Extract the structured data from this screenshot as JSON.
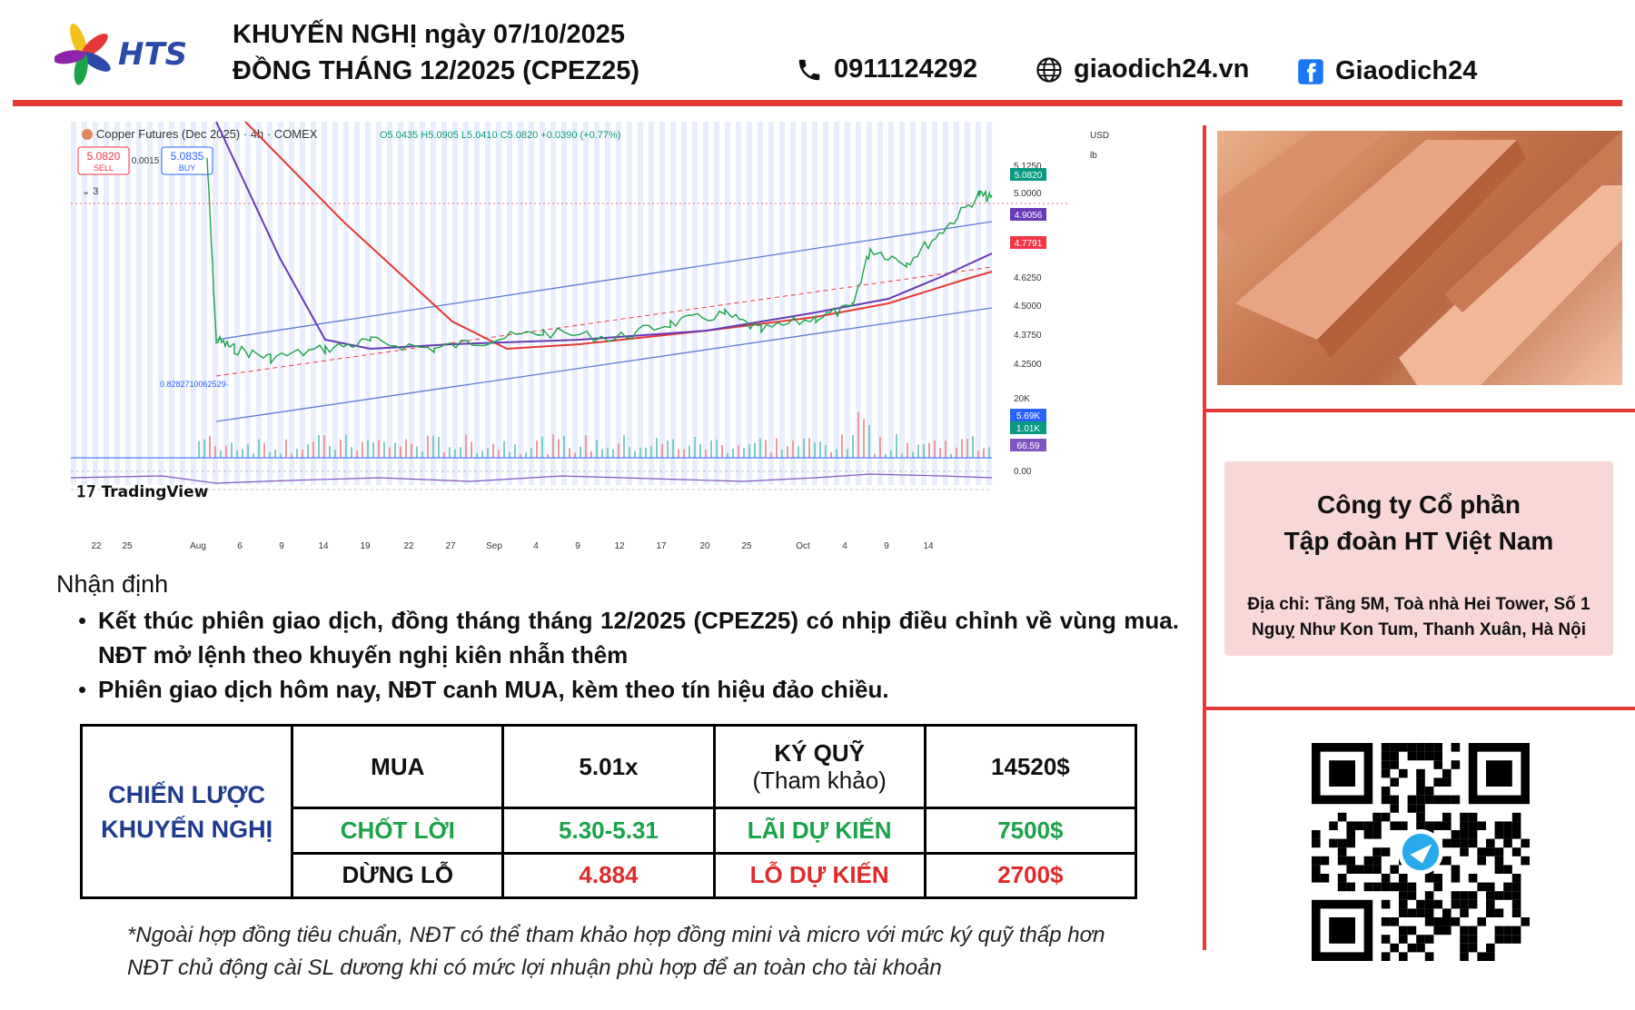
{
  "header": {
    "logo_text": "HTS",
    "title_line1": "KHUYẾN NGHỊ ngày 07/10/2025",
    "title_line2": "ĐỒNG THÁNG 12/2025 (CPEZ25)",
    "phone": "0911124292",
    "website": "giaodich24.vn",
    "facebook": "Giaodich24",
    "colors": {
      "accent_red": "#e53935",
      "logo_blue": "#2b4aa8"
    }
  },
  "chart_screenshot": {
    "symbol_line": "Copper Futures (Dec 2025) · 4h · COMEX",
    "ohlc": "O5.0435 H5.0905 L5.0410 C5.0820 +0.0390 (+0.77%)",
    "sell_price": "5.0820",
    "sell_label": "SELL",
    "spread": "0.0015",
    "buy_price": "5.0835",
    "buy_label": "BUY",
    "indicators_count": "3",
    "currency": "USD",
    "unit": "lb",
    "watermark": "TradingView",
    "fib_label": "0.8282710062529·",
    "price_badges": [
      {
        "label": "5.0820",
        "color": "#089981"
      },
      {
        "label": "4.9056",
        "color": "#673ab7"
      },
      {
        "label": "4.7791",
        "color": "#f23645"
      },
      {
        "label": "5.69K",
        "color": "#2962ff"
      },
      {
        "label": "1.01K",
        "color": "#089981"
      },
      {
        "label": "66.59",
        "color": "#7e57c2"
      }
    ],
    "right_ticks": [
      "5.1250",
      "5.0000",
      "4.6250",
      "4.5000",
      "4.3750",
      "4.2500",
      "20K",
      "0.00"
    ],
    "x_ticks": [
      "22",
      "25",
      "Aug",
      "6",
      "9",
      "14",
      "19",
      "22",
      "27",
      "Sep",
      "4",
      "9",
      "12",
      "17",
      "20",
      "25",
      "Oct",
      "4",
      "9",
      "14"
    ]
  },
  "analysis": {
    "heading": "Nhận định",
    "bullets": [
      "Kết thúc phiên giao dịch, đồng tháng tháng 12/2025 (CPEZ25) có nhịp điều chỉnh về vùng mua. NĐT mở lệnh theo khuyến nghị kiên nhẫn thêm",
      "Phiên giao dịch hôm nay, NĐT canh MUA, kèm theo tín hiệu đảo chiều."
    ]
  },
  "strategy": {
    "head_line1": "CHIẾN LƯỢC",
    "head_line2": "KHUYẾN NGHỊ",
    "rows": [
      {
        "action": "MUA",
        "value": "5.01x",
        "label_line1": "KÝ QUỸ",
        "label_line2": "(Tham khảo)",
        "amount": "14520$"
      },
      {
        "action": "CHỐT LỜI",
        "value": "5.30-5.31",
        "label_line1": "LÃI DỰ KIẾN",
        "label_line2": "",
        "amount": "7500$"
      },
      {
        "action": "DỪNG LỖ",
        "value": "4.884",
        "label_line1": "LỖ DỰ KIẾN",
        "label_line2": "",
        "amount": "2700$"
      }
    ]
  },
  "note": {
    "line1": "*Ngoài hợp đồng tiêu chuẩn, NĐT có thể tham khảo hợp đồng mini và micro với mức ký quỹ thấp hơn",
    "line2": "NĐT chủ động cài SL dương khi có mức lợi nhuận phù hợp để an toàn cho tài khoản"
  },
  "company": {
    "name_line1": "Công ty Cổ phần",
    "name_line2": "Tập đoàn HT Việt Nam",
    "address": "Địa chỉ: Tầng 5M, Toà nhà Hei Tower, Số 1 Nguỵ Như Kon Tum, Thanh Xuân, Hà Nội"
  },
  "icons": [
    "phone-icon",
    "globe-icon",
    "facebook-icon",
    "telegram-icon",
    "qr-code"
  ]
}
